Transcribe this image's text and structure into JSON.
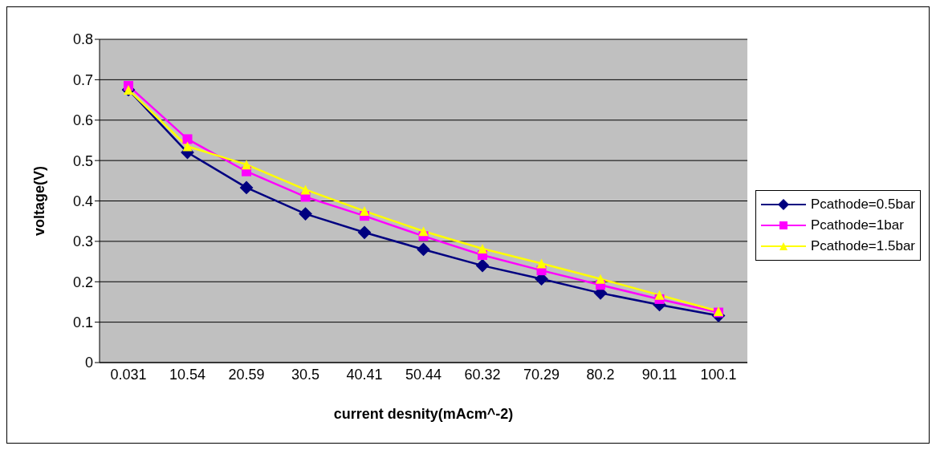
{
  "chart_data": {
    "type": "line",
    "xlabel": "current desnity(mAcm^-2)",
    "ylabel": "voltage(V)",
    "categories": [
      "0.031",
      "10.54",
      "20.59",
      "30.5",
      "40.41",
      "50.44",
      "60.32",
      "70.29",
      "80.2",
      "90.11",
      "100.1"
    ],
    "series": [
      {
        "name": "Pcathode=0.5bar",
        "color": "#000080",
        "marker": "diamond",
        "values": [
          0.675,
          0.52,
          0.433,
          0.368,
          0.322,
          0.28,
          0.24,
          0.207,
          0.172,
          0.143,
          0.116
        ]
      },
      {
        "name": "Pcathode=1bar",
        "color": "#ff00ff",
        "marker": "square",
        "values": [
          0.685,
          0.553,
          0.473,
          0.41,
          0.363,
          0.313,
          0.266,
          0.228,
          0.192,
          0.157,
          0.124
        ]
      },
      {
        "name": "Pcathode=1.5bar",
        "color": "#ffff00",
        "marker": "triangle",
        "values": [
          0.675,
          0.535,
          0.49,
          0.428,
          0.375,
          0.325,
          0.282,
          0.245,
          0.207,
          0.167,
          0.127
        ]
      }
    ],
    "ylim": [
      0,
      0.8
    ],
    "yticks": [
      0,
      0.1,
      0.2,
      0.3,
      0.4,
      0.5,
      0.6,
      0.7,
      0.8
    ],
    "grid": "y",
    "legend": "right",
    "line_style": "solid"
  }
}
